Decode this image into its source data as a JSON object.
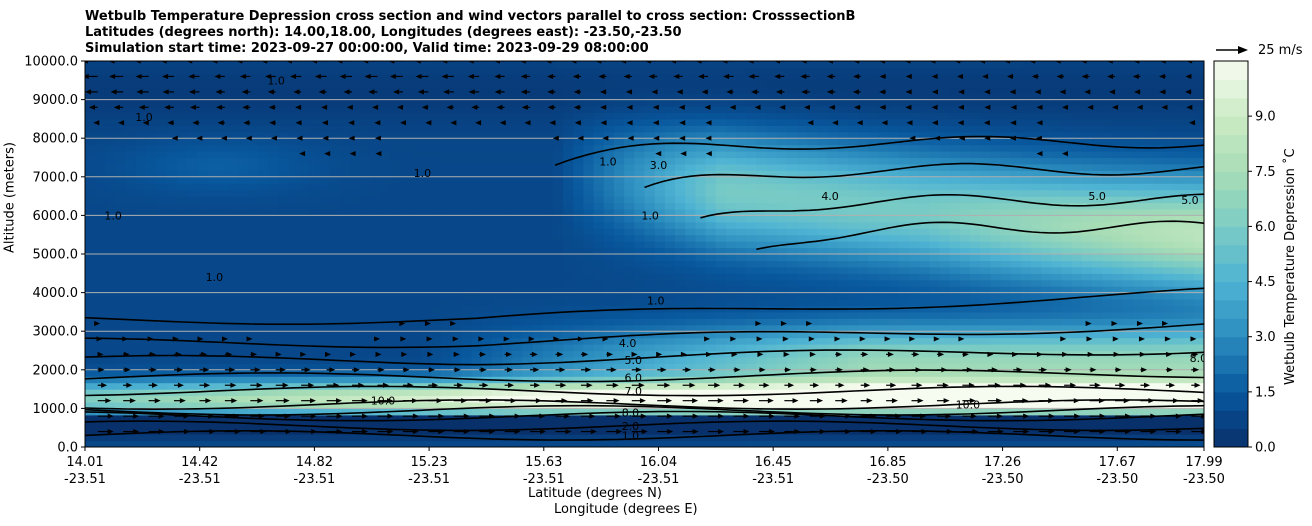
{
  "chart_data": {
    "type": "contourf",
    "title_lines": [
      "Wetbulb Temperature Depression cross section and wind vectors parallel to cross section: CrosssectionB",
      "Latitudes (degrees north): 14.00,18.00, Longitudes (degrees east): -23.50,-23.50",
      "Simulation start time: 2023-09-27 00:00:00, Valid time: 2023-09-29 08:00:00"
    ],
    "ylabel": "Altitude (meters)",
    "xlabel_lat": "Latitude (degrees N)",
    "xlabel_lon": "Longitude (degrees E)",
    "ylim": [
      0,
      10000
    ],
    "y_ticks": [
      "0.0",
      "1000.0",
      "2000.0",
      "3000.0",
      "4000.0",
      "5000.0",
      "6000.0",
      "7000.0",
      "8000.0",
      "9000.0",
      "10000.0"
    ],
    "y_tick_values": [
      0,
      1000,
      2000,
      3000,
      4000,
      5000,
      6000,
      7000,
      8000,
      9000,
      10000
    ],
    "x_ticks": [
      {
        "lat": "14.01",
        "lon": "-23.51"
      },
      {
        "lat": "14.42",
        "lon": "-23.51"
      },
      {
        "lat": "14.82",
        "lon": "-23.51"
      },
      {
        "lat": "15.23",
        "lon": "-23.51"
      },
      {
        "lat": "15.63",
        "lon": "-23.51"
      },
      {
        "lat": "16.04",
        "lon": "-23.51"
      },
      {
        "lat": "16.45",
        "lon": "-23.51"
      },
      {
        "lat": "16.85",
        "lon": "-23.50"
      },
      {
        "lat": "17.26",
        "lon": "-23.50"
      },
      {
        "lat": "17.67",
        "lon": "-23.50"
      },
      {
        "lat": "17.99",
        "lon": "-23.50"
      }
    ],
    "x_range": [
      14.01,
      17.99
    ],
    "colorbar": {
      "label": "Wetbulb Temperature Depression ˚C",
      "range": [
        0,
        10.5
      ],
      "ticks": [
        "0.0",
        "1.5",
        "3.0",
        "4.5",
        "6.0",
        "7.5",
        "9.0"
      ],
      "tick_values": [
        0,
        1.5,
        3.0,
        4.5,
        6.0,
        7.5,
        9.0
      ],
      "colormap": "GnBu_r",
      "colors": [
        "#08306b",
        "#08589e",
        "#2b8cbe",
        "#4eb3d3",
        "#7bccc4",
        "#a8ddb5",
        "#ccebc5",
        "#f7fcf0"
      ]
    },
    "quiver_key": {
      "label": "25 m/s",
      "value": 25
    },
    "grid": "horizontal",
    "contour_labels": [
      {
        "text": "1.0",
        "lat": 14.69,
        "z": 9500
      },
      {
        "text": "1.0",
        "lat": 14.22,
        "z": 8550
      },
      {
        "text": "1.0",
        "lat": 14.11,
        "z": 6000
      },
      {
        "text": "1.0",
        "lat": 14.47,
        "z": 4400
      },
      {
        "text": "1.0",
        "lat": 15.21,
        "z": 7100
      },
      {
        "text": "1.0",
        "lat": 15.87,
        "z": 7400
      },
      {
        "text": "1.0",
        "lat": 16.02,
        "z": 6000
      },
      {
        "text": "1.0",
        "lat": 16.04,
        "z": 3800
      },
      {
        "text": "3.0",
        "lat": 16.05,
        "z": 7300
      },
      {
        "text": "4.0",
        "lat": 16.66,
        "z": 6500
      },
      {
        "text": "4.0",
        "lat": 15.94,
        "z": 2700
      },
      {
        "text": "5.0",
        "lat": 17.61,
        "z": 6500
      },
      {
        "text": "5.0",
        "lat": 17.94,
        "z": 6400
      },
      {
        "text": "5.0",
        "lat": 15.96,
        "z": 2250
      },
      {
        "text": "6.0",
        "lat": 15.96,
        "z": 1800
      },
      {
        "text": "7.0",
        "lat": 15.96,
        "z": 1450
      },
      {
        "text": "8.0",
        "lat": 17.97,
        "z": 2300
      },
      {
        "text": "10.0",
        "lat": 15.07,
        "z": 1200
      },
      {
        "text": "10.0",
        "lat": 17.15,
        "z": 1100
      },
      {
        "text": "1.0",
        "lat": 15.95,
        "z": 300
      },
      {
        "text": "2.0",
        "lat": 15.95,
        "z": 550
      },
      {
        "text": "8.0",
        "lat": 15.95,
        "z": 900
      }
    ]
  }
}
